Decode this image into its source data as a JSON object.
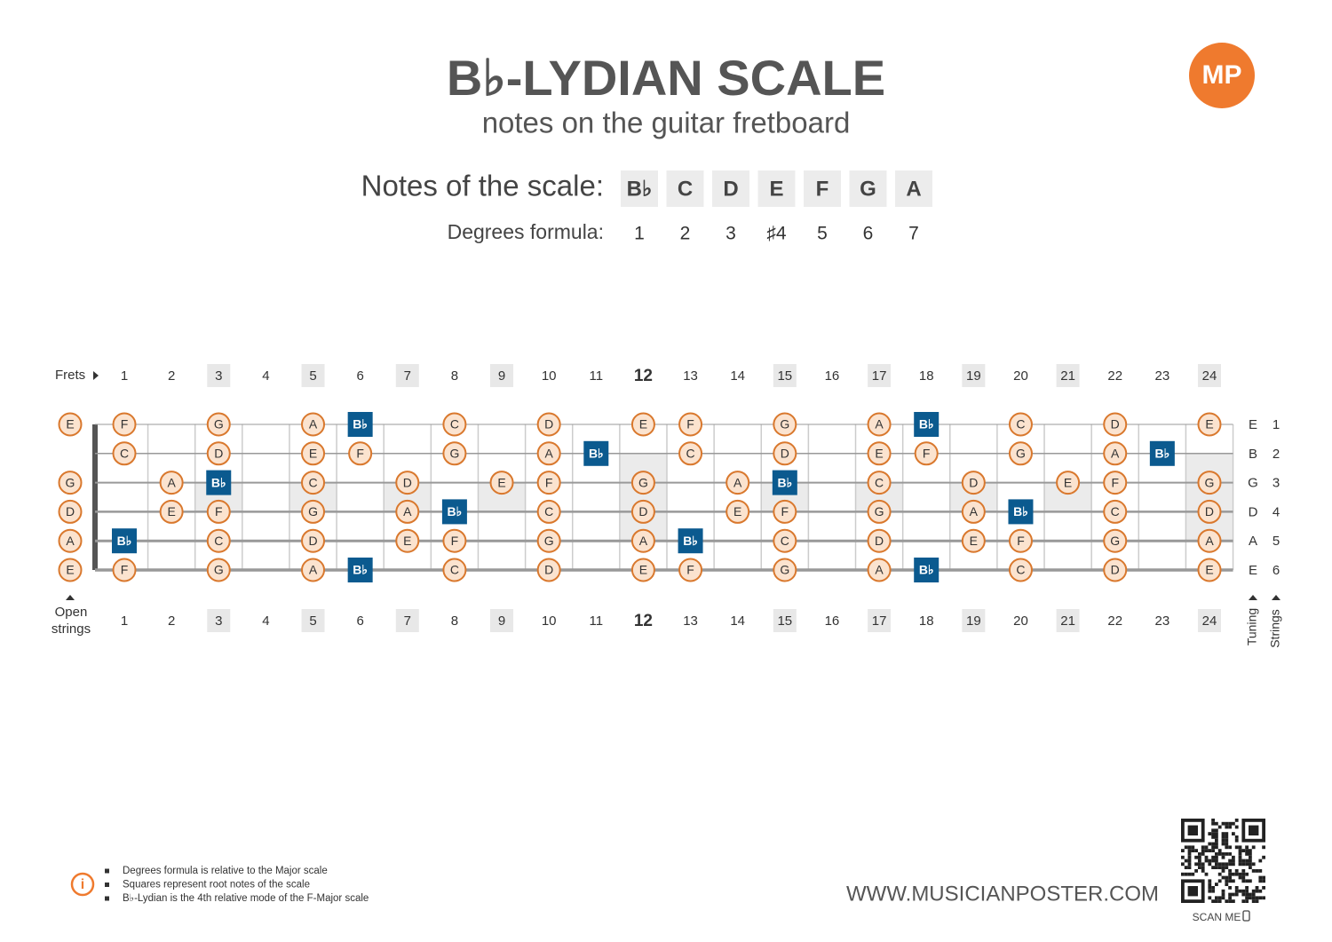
{
  "header": {
    "title": "B♭-LYDIAN SCALE",
    "subtitle": "notes on the guitar fretboard",
    "logo": "MP"
  },
  "scale": {
    "notes_label": "Notes of the scale:",
    "notes": [
      "B♭",
      "C",
      "D",
      "E",
      "F",
      "G",
      "A"
    ],
    "degrees_label": "Degrees formula:",
    "degrees": [
      "1",
      "2",
      "3",
      "♯4",
      "5",
      "6",
      "7"
    ]
  },
  "fretboard": {
    "frets_label": "Frets",
    "frets": [
      1,
      2,
      3,
      4,
      5,
      6,
      7,
      8,
      9,
      10,
      11,
      12,
      13,
      14,
      15,
      16,
      17,
      18,
      19,
      20,
      21,
      22,
      23,
      24
    ],
    "inlay_frets": [
      3,
      5,
      7,
      9,
      15,
      17,
      19,
      21
    ],
    "double_inlay_frets": [
      12,
      24
    ],
    "octave_fret": 12,
    "open_label": "Open strings",
    "tuning_label": "Tuning",
    "strings_label": "Strings",
    "strings": [
      {
        "number": 1,
        "tuning": "E",
        "notes": [
          "E",
          "F",
          null,
          "G",
          null,
          "A",
          "B♭",
          null,
          "C",
          null,
          "D",
          null,
          "E",
          "F",
          null,
          "G",
          null,
          "A",
          "B♭",
          null,
          "C",
          null,
          "D",
          null,
          "E"
        ]
      },
      {
        "number": 2,
        "tuning": "B",
        "notes": [
          null,
          "C",
          null,
          "D",
          null,
          "E",
          "F",
          null,
          "G",
          null,
          "A",
          "B♭",
          null,
          "C",
          null,
          "D",
          null,
          "E",
          "F",
          null,
          "G",
          null,
          "A",
          "B♭",
          null
        ]
      },
      {
        "number": 3,
        "tuning": "G",
        "notes": [
          "G",
          null,
          "A",
          "B♭",
          null,
          "C",
          null,
          "D",
          null,
          "E",
          "F",
          null,
          "G",
          null,
          "A",
          "B♭",
          null,
          "C",
          null,
          "D",
          null,
          "E",
          "F",
          null,
          "G"
        ]
      },
      {
        "number": 4,
        "tuning": "D",
        "notes": [
          "D",
          null,
          "E",
          "F",
          null,
          "G",
          null,
          "A",
          "B♭",
          null,
          "C",
          null,
          "D",
          null,
          "E",
          "F",
          null,
          "G",
          null,
          "A",
          "B♭",
          null,
          "C",
          null,
          "D"
        ]
      },
      {
        "number": 5,
        "tuning": "A",
        "notes": [
          "A",
          "B♭",
          null,
          "C",
          null,
          "D",
          null,
          "E",
          "F",
          null,
          "G",
          null,
          "A",
          "B♭",
          null,
          "C",
          null,
          "D",
          null,
          "E",
          "F",
          null,
          "G",
          null,
          "A"
        ]
      },
      {
        "number": 6,
        "tuning": "E",
        "notes": [
          "E",
          "F",
          null,
          "G",
          null,
          "A",
          "B♭",
          null,
          "C",
          null,
          "D",
          null,
          "E",
          "F",
          null,
          "G",
          null,
          "A",
          "B♭",
          null,
          "C",
          null,
          "D",
          null,
          "E"
        ]
      }
    ]
  },
  "footer": {
    "notes": [
      "Degrees formula is relative to the Major scale",
      "Squares represent root notes of the scale",
      "B♭-Lydian is the 4th relative mode of the F-Major scale"
    ],
    "website": "WWW.MUSICIANPOSTER.COM",
    "scan": "SCAN ME"
  }
}
